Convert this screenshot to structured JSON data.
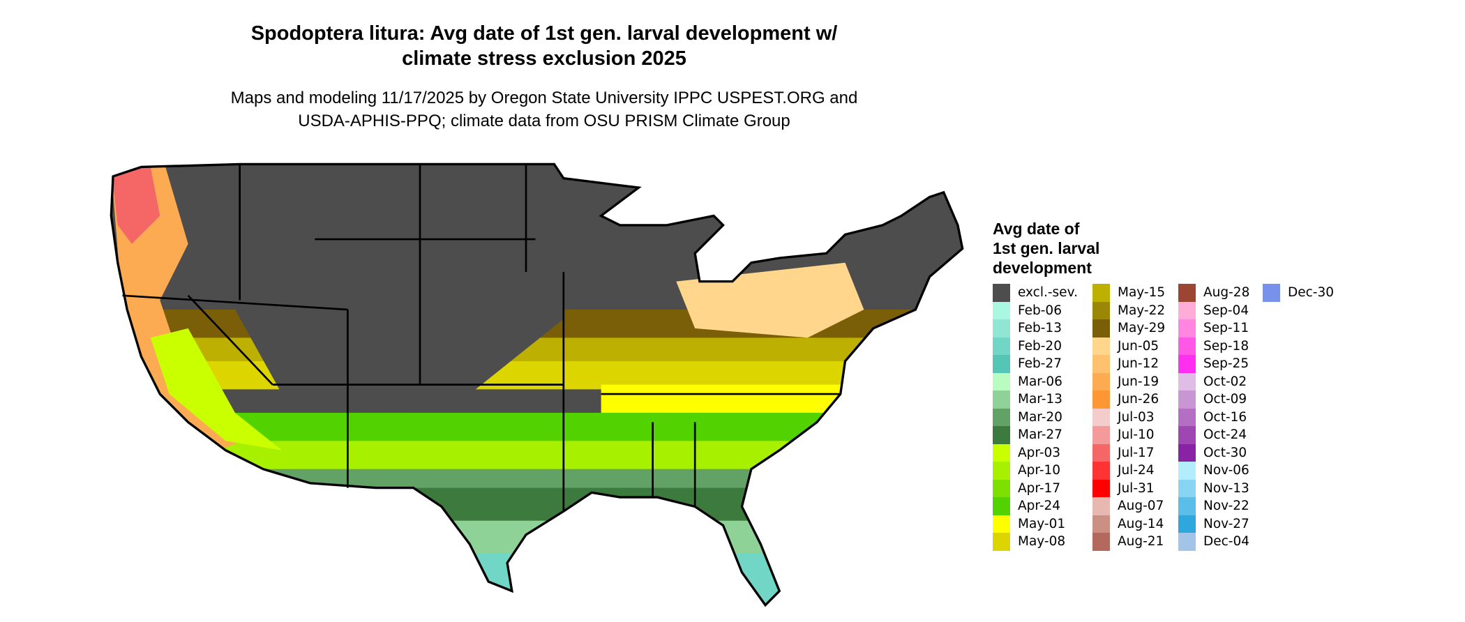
{
  "title": "Spodoptera litura: Avg date of 1st gen. larval development w/ climate stress exclusion 2025",
  "title_line1": "Spodoptera litura: Avg date of 1st gen. larval development w/",
  "title_line2": "climate stress exclusion 2025",
  "subtitle_line1": "Maps and modeling 11/17/2025 by Oregon State University IPPC USPEST.ORG and",
  "subtitle_line2": "USDA-APHIS-PPQ; climate data from OSU PRISM Climate Group",
  "map": {
    "region": "Contiguous United States",
    "excluded_color": "#4d4d4d",
    "state_border_color": "#000000"
  },
  "legend": {
    "title_lines": [
      "Avg date of",
      "1st gen. larval",
      "development"
    ],
    "columns": [
      [
        {
          "label": "excl.-sev.",
          "color": "#4d4d4d"
        },
        {
          "label": "Feb-06",
          "color": "#aaf7e2"
        },
        {
          "label": "Feb-13",
          "color": "#90e6d2"
        },
        {
          "label": "Feb-20",
          "color": "#72d6c6"
        },
        {
          "label": "Feb-27",
          "color": "#55c5b5"
        },
        {
          "label": "Mar-06",
          "color": "#b9fcc0"
        },
        {
          "label": "Mar-13",
          "color": "#8fd297"
        },
        {
          "label": "Mar-20",
          "color": "#62a266"
        },
        {
          "label": "Mar-27",
          "color": "#3c7a3e"
        },
        {
          "label": "Apr-03",
          "color": "#caff00"
        },
        {
          "label": "Apr-10",
          "color": "#a6f000"
        },
        {
          "label": "Apr-17",
          "color": "#7ee000"
        },
        {
          "label": "Apr-24",
          "color": "#52d300"
        },
        {
          "label": "May-01",
          "color": "#ffff00"
        },
        {
          "label": "May-08",
          "color": "#dcd500"
        }
      ],
      [
        {
          "label": "May-15",
          "color": "#bdb000"
        },
        {
          "label": "May-22",
          "color": "#9c8606"
        },
        {
          "label": "May-29",
          "color": "#7a5f08"
        },
        {
          "label": "Jun-05",
          "color": "#ffd68c"
        },
        {
          "label": "Jun-12",
          "color": "#ffc16e"
        },
        {
          "label": "Jun-19",
          "color": "#fcab52"
        },
        {
          "label": "Jun-26",
          "color": "#fd9634"
        },
        {
          "label": "Jul-03",
          "color": "#f4cccc"
        },
        {
          "label": "Jul-10",
          "color": "#f49a9a"
        },
        {
          "label": "Jul-17",
          "color": "#f56666"
        },
        {
          "label": "Jul-24",
          "color": "#ff3333"
        },
        {
          "label": "Jul-31",
          "color": "#ff0000"
        },
        {
          "label": "Aug-07",
          "color": "#e6b8af"
        },
        {
          "label": "Aug-14",
          "color": "#cc8f84"
        },
        {
          "label": "Aug-21",
          "color": "#b4695e"
        }
      ],
      [
        {
          "label": "Aug-28",
          "color": "#9c4532"
        },
        {
          "label": "Sep-04",
          "color": "#ffadd8"
        },
        {
          "label": "Sep-11",
          "color": "#ff85e0"
        },
        {
          "label": "Sep-18",
          "color": "#ff57e6"
        },
        {
          "label": "Sep-25",
          "color": "#ff2ef0"
        },
        {
          "label": "Oct-02",
          "color": "#e0bde6"
        },
        {
          "label": "Oct-09",
          "color": "#c996d4"
        },
        {
          "label": "Oct-16",
          "color": "#b46fc4"
        },
        {
          "label": "Oct-24",
          "color": "#9e47b3"
        },
        {
          "label": "Oct-30",
          "color": "#8a22a6"
        },
        {
          "label": "Nov-06",
          "color": "#b3ecfc"
        },
        {
          "label": "Nov-13",
          "color": "#87d5f2"
        },
        {
          "label": "Nov-22",
          "color": "#5abee8"
        },
        {
          "label": "Nov-27",
          "color": "#2ea7dc"
        },
        {
          "label": "Dec-04",
          "color": "#a1c4e8"
        }
      ],
      [
        {
          "label": "Dec-30",
          "color": "#7892eb"
        }
      ]
    ]
  }
}
